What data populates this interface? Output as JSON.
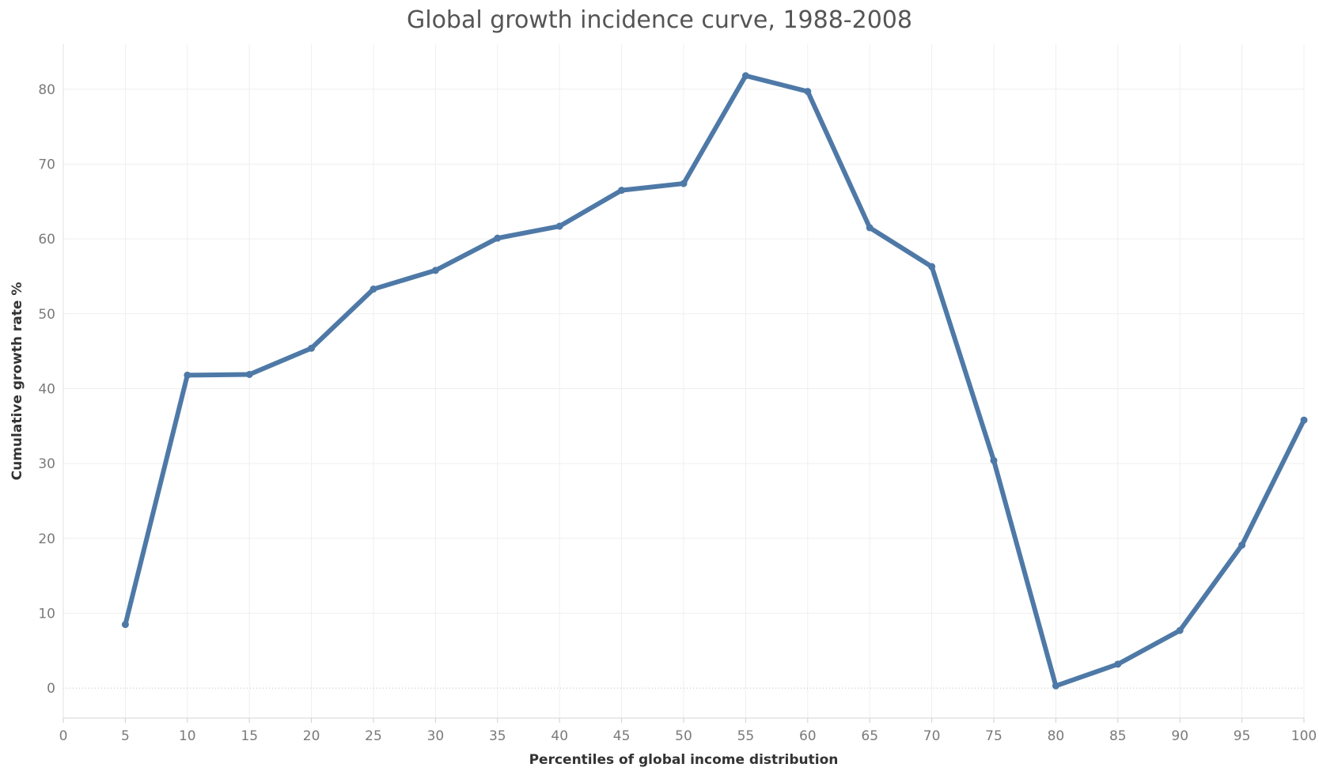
{
  "chart_data": {
    "type": "line",
    "title": "Global growth incidence curve, 1988-2008",
    "xlabel": "Percentiles of global income distribution",
    "ylabel": "Cumulative growth rate %",
    "x": [
      5,
      10,
      15,
      20,
      25,
      30,
      35,
      40,
      45,
      50,
      55,
      60,
      65,
      70,
      75,
      80,
      85,
      90,
      95,
      100
    ],
    "series": [
      {
        "values": [
          8.5,
          41.8,
          41.9,
          45.4,
          53.3,
          55.8,
          60.1,
          61.7,
          66.5,
          67.4,
          81.8,
          79.7,
          61.5,
          56.3,
          30.4,
          0.3,
          3.2,
          7.7,
          19.1,
          35.8
        ]
      }
    ],
    "xlim": [
      0,
      100
    ],
    "ylim": [
      -4,
      86
    ],
    "x_ticks": [
      0,
      5,
      10,
      15,
      20,
      25,
      30,
      35,
      40,
      45,
      50,
      55,
      60,
      65,
      70,
      75,
      80,
      85,
      90,
      95,
      100
    ],
    "y_ticks": [
      0,
      10,
      20,
      30,
      40,
      50,
      60,
      70,
      80
    ],
    "grid": true,
    "line_color": "#4e79a7"
  }
}
